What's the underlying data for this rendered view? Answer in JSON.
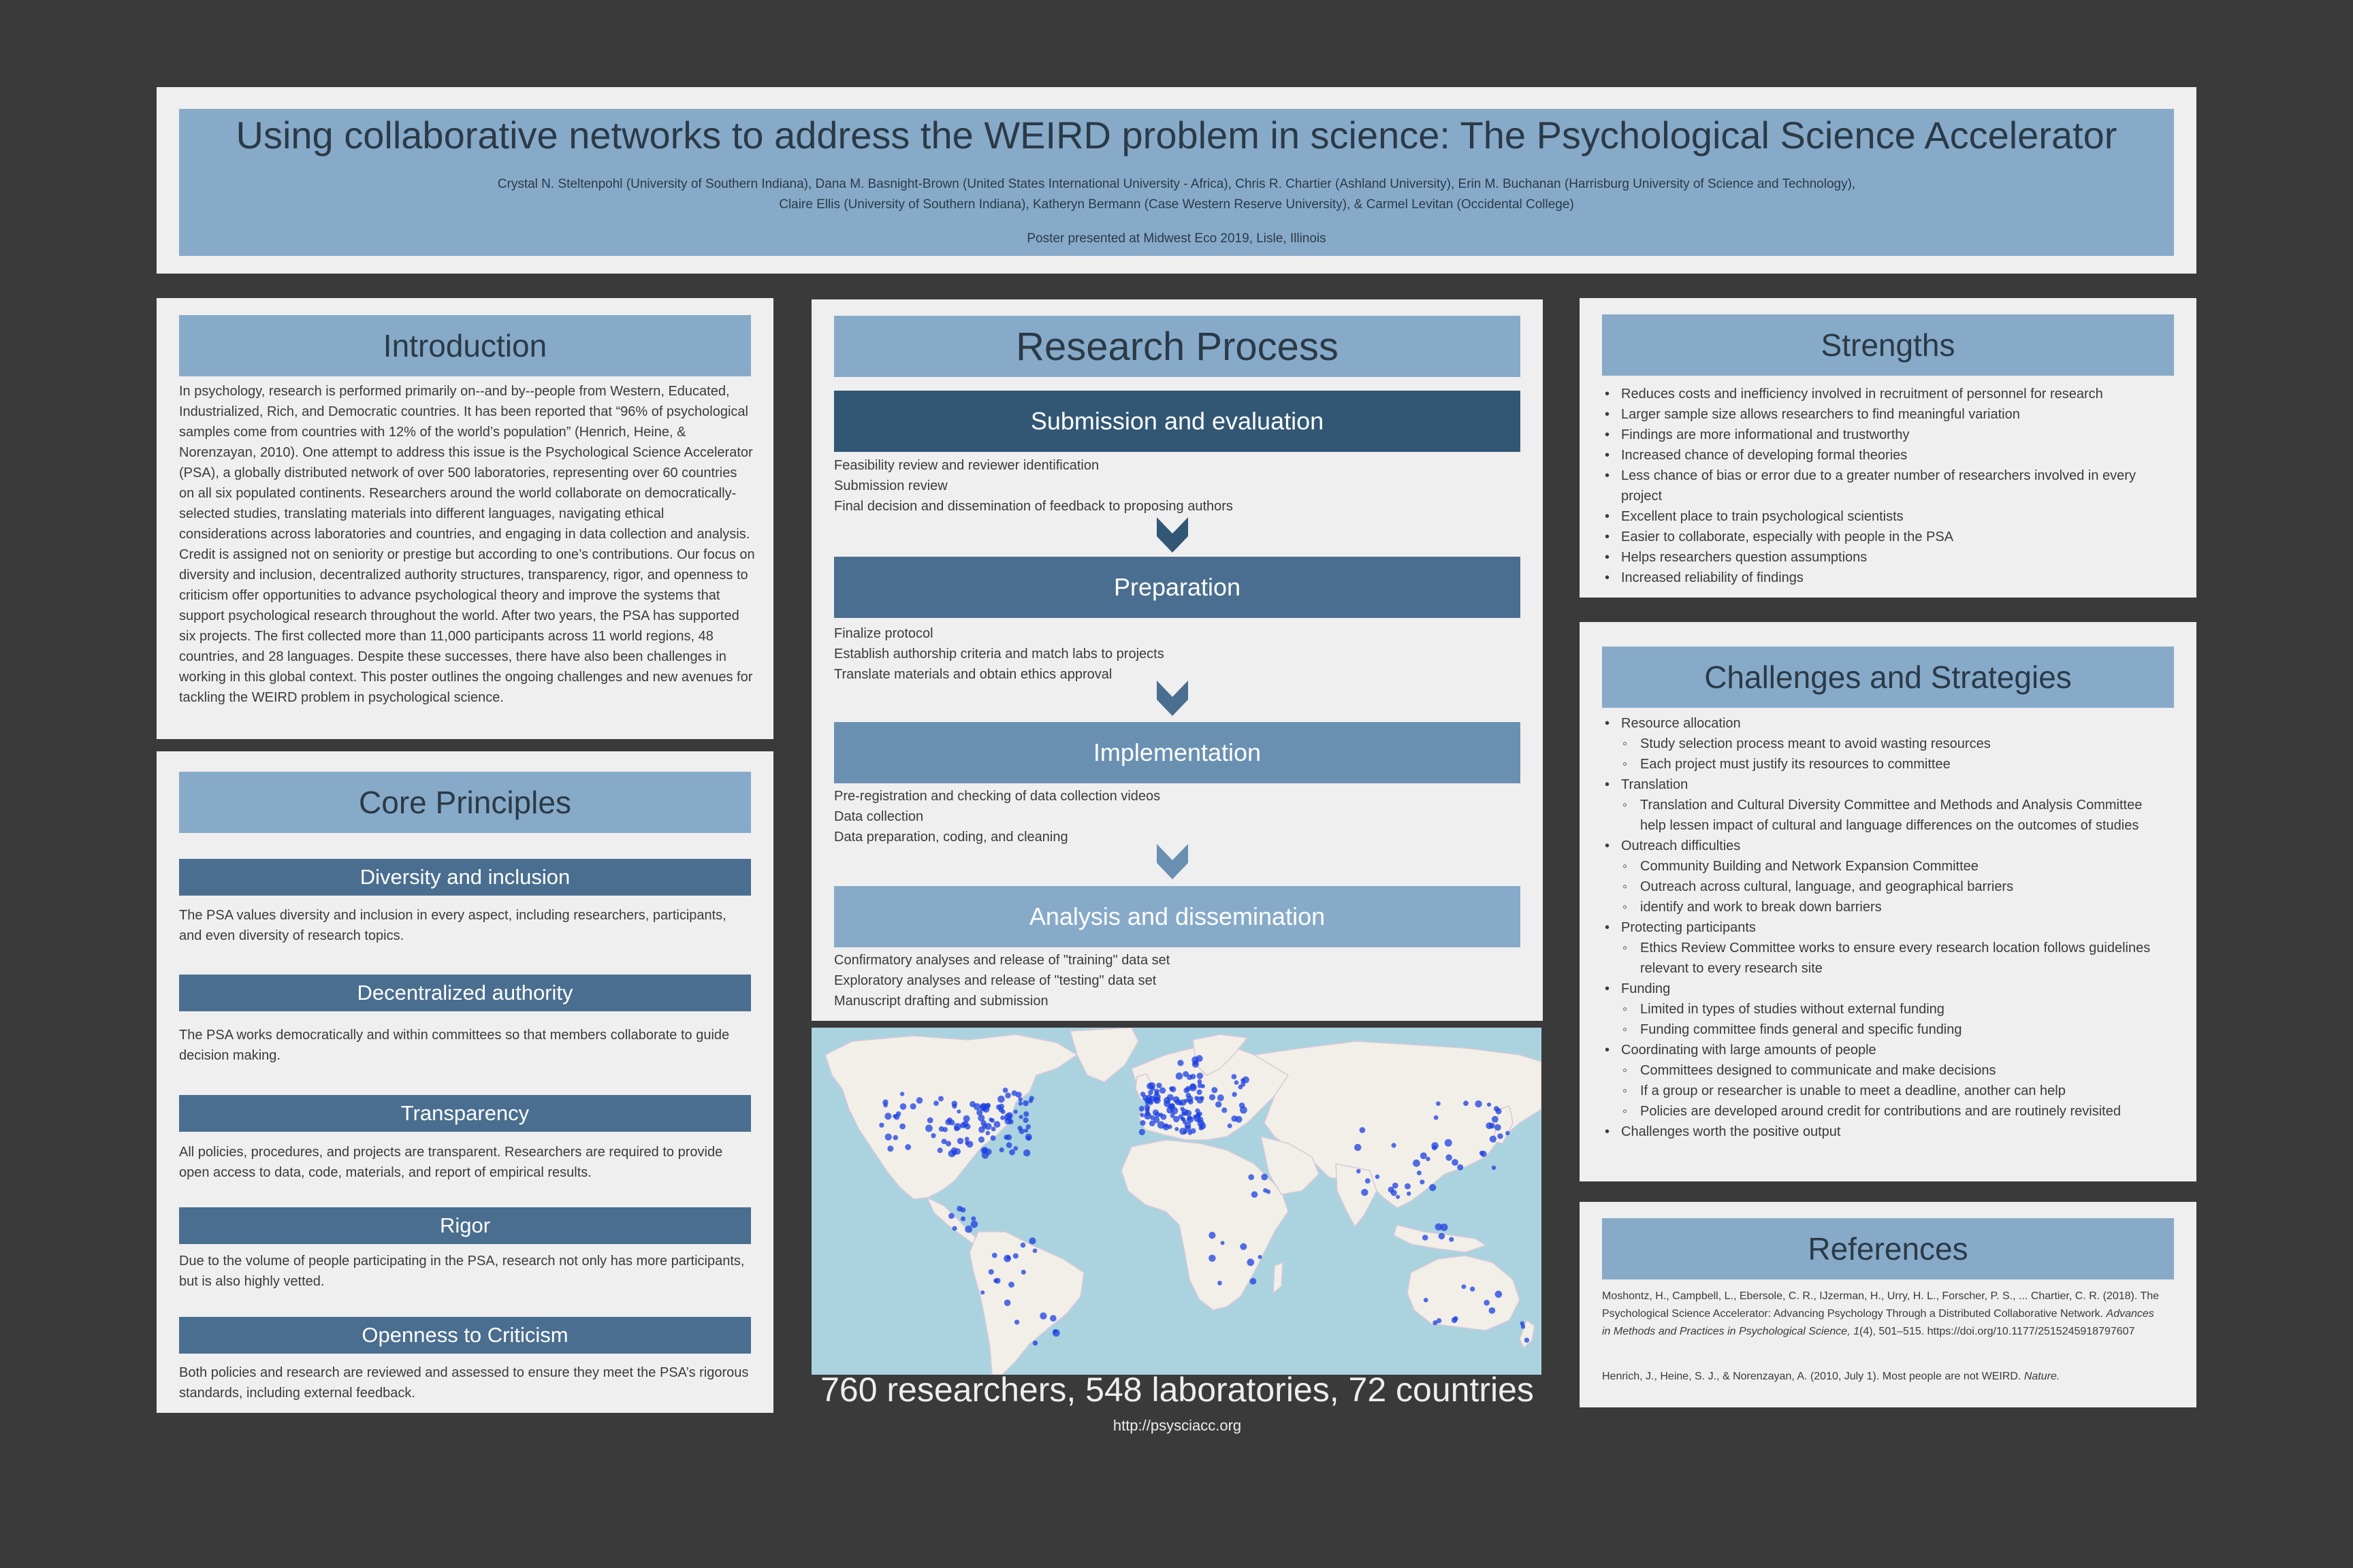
{
  "header": {
    "title": "Using collaborative networks to address the WEIRD problem in science: The Psychological Science Accelerator",
    "authors_line1": "Crystal N. Steltenpohl (University of Southern Indiana), Dana M. Basnight-Brown (United States International University - Africa), Chris R. Chartier (Ashland University), Erin M. Buchanan (Harrisburg University of Science and Technology),",
    "authors_line2": "Claire Ellis (University of Southern Indiana), Katheryn Bermann (Case Western Reserve University), & Carmel Levitan (Occidental College)",
    "presented": "Poster presented at Midwest Eco 2019, Lisle, Illinois"
  },
  "introduction": {
    "heading": "Introduction",
    "body": "In psychology, research is performed primarily on--and by--people from Western, Educated, Industrialized, Rich, and Democratic countries. It has been reported that “96% of psychological samples come from countries with 12% of the world’s population” (Henrich, Heine, & Norenzayan, 2010). One attempt to address this issue is the Psychological Science Accelerator (PSA), a globally distributed network of over 500 laboratories, representing over 60 countries on all six populated continents. Researchers around the world collaborate on democratically-selected studies, translating materials into different languages, navigating ethical considerations across laboratories and countries, and engaging in data collection and analysis. Credit is assigned not on seniority or prestige but according to one’s contributions. Our focus on diversity and inclusion, decentralized authority structures, transparency, rigor, and openness to criticism offer opportunities to advance psychological theory and improve the systems that support psychological research throughout the world. After two years, the PSA has supported six projects. The first collected more than 11,000 participants across 11 world regions, 48 countries, and 28 languages. Despite these successes, there have also been challenges in working in this global context. This poster outlines the ongoing challenges and new avenues for tackling the WEIRD problem in psychological science."
  },
  "core_principles": {
    "heading": "Core Principles",
    "items": [
      {
        "title": "Diversity and inclusion",
        "text": "The PSA values diversity and inclusion in every aspect, including researchers, participants, and even diversity of research topics."
      },
      {
        "title": "Decentralized authority",
        "text": "The PSA works democratically and within committees so that members collaborate to guide decision making."
      },
      {
        "title": "Transparency",
        "text": "All policies, procedures, and projects are transparent. Researchers are required to provide open access to data, code, materials, and report of empirical results."
      },
      {
        "title": "Rigor",
        "text": "Due to the volume of people participating in the PSA, research not only has more participants, but is also highly vetted."
      },
      {
        "title": "Openness to Criticism",
        "text": "Both policies and research are reviewed and assessed to ensure they meet the PSA’s rigorous standards, including external feedback."
      }
    ]
  },
  "research_process": {
    "heading": "Research Process",
    "stages": [
      {
        "title": "Submission and evaluation",
        "lines": [
          "Feasibility review and reviewer identification",
          "Submission review",
          "Final decision and dissemination of feedback to proposing authors"
        ]
      },
      {
        "title": "Preparation",
        "lines": [
          "Finalize protocol",
          "Establish authorship criteria and match labs to projects",
          "Translate materials and obtain ethics approval"
        ]
      },
      {
        "title": "Implementation",
        "lines": [
          "Pre-registration and checking of data collection videos",
          "Data collection",
          "Data preparation, coding, and cleaning"
        ]
      },
      {
        "title": "Analysis and dissemination",
        "lines": [
          "Confirmatory analyses and release of \"training\" data set",
          "Exploratory analyses and release of \"testing\" data set",
          "Manuscript drafting and submission"
        ]
      }
    ]
  },
  "map": {
    "caption": "760 researchers, 548 laboratories, 72 countries",
    "url": "http://psysciacc.org",
    "colors": {
      "ocean": "#aad3df",
      "land": "#f2efe9",
      "dot": "#1b3fe0"
    }
  },
  "strengths": {
    "heading": "Strengths",
    "items": [
      "Reduces costs and inefficiency involved in recruitment of personnel for research",
      "Larger sample size allows researchers to find meaningful variation",
      "Findings are more informational and trustworthy",
      "Increased chance of developing formal theories",
      "Less chance of bias or error due to a greater number of researchers involved in every project",
      "Excellent place to train psychological scientists",
      "Easier to collaborate, especially with people in the PSA",
      "Helps researchers question assumptions",
      "Increased reliability of findings"
    ]
  },
  "challenges": {
    "heading": "Challenges and Strategies",
    "items": [
      {
        "label": "Resource allocation",
        "subs": [
          "Study selection process meant to avoid wasting resources",
          "Each project must justify its resources to committee"
        ]
      },
      {
        "label": "Translation",
        "subs": [
          "Translation and Cultural Diversity Committee and Methods and Analysis Committee help lessen impact of cultural and language differences on the outcomes of studies"
        ]
      },
      {
        "label": "Outreach difficulties",
        "subs": [
          "Community Building and Network Expansion Committee",
          "Outreach across cultural, language, and geographical barriers",
          "identify and work to break down barriers"
        ]
      },
      {
        "label": "Protecting participants",
        "subs": [
          "Ethics Review Committee works to ensure every research location follows guidelines relevant to every research site"
        ]
      },
      {
        "label": "Funding",
        "subs": [
          "Limited in types of studies without external funding",
          "Funding committee finds general and specific funding"
        ]
      },
      {
        "label": "Coordinating with large amounts of people",
        "subs": [
          "Committees designed to communicate and make decisions",
          "If a group or researcher is unable to meet a deadline, another can help",
          "Policies are developed around credit for contributions and are routinely revisited"
        ]
      },
      {
        "label": "Challenges worth the positive output",
        "subs": []
      }
    ]
  },
  "references": {
    "heading": "References",
    "ref1_a": "Moshontz, H., Campbell, L., Ebersole, C. R., IJzerman, H., Urry, H. L., Forscher, P. S., ... Chartier,   C. R. (2018). The Psychological Science Accelerator: Advancing Psychology Through a  Distributed Collaborative Network. ",
    "ref1_journal": "Advances in Methods and Practices in Psychological Science, 1",
    "ref1_b": "(4), 501–515. https://doi.org/10.1177/2515245918797607",
    "ref2_a": "Henrich, J., Heine, S. J., & Norenzayan, A. (2010, July 1). Most people are not WEIRD. ",
    "ref2_journal": "Nature."
  }
}
